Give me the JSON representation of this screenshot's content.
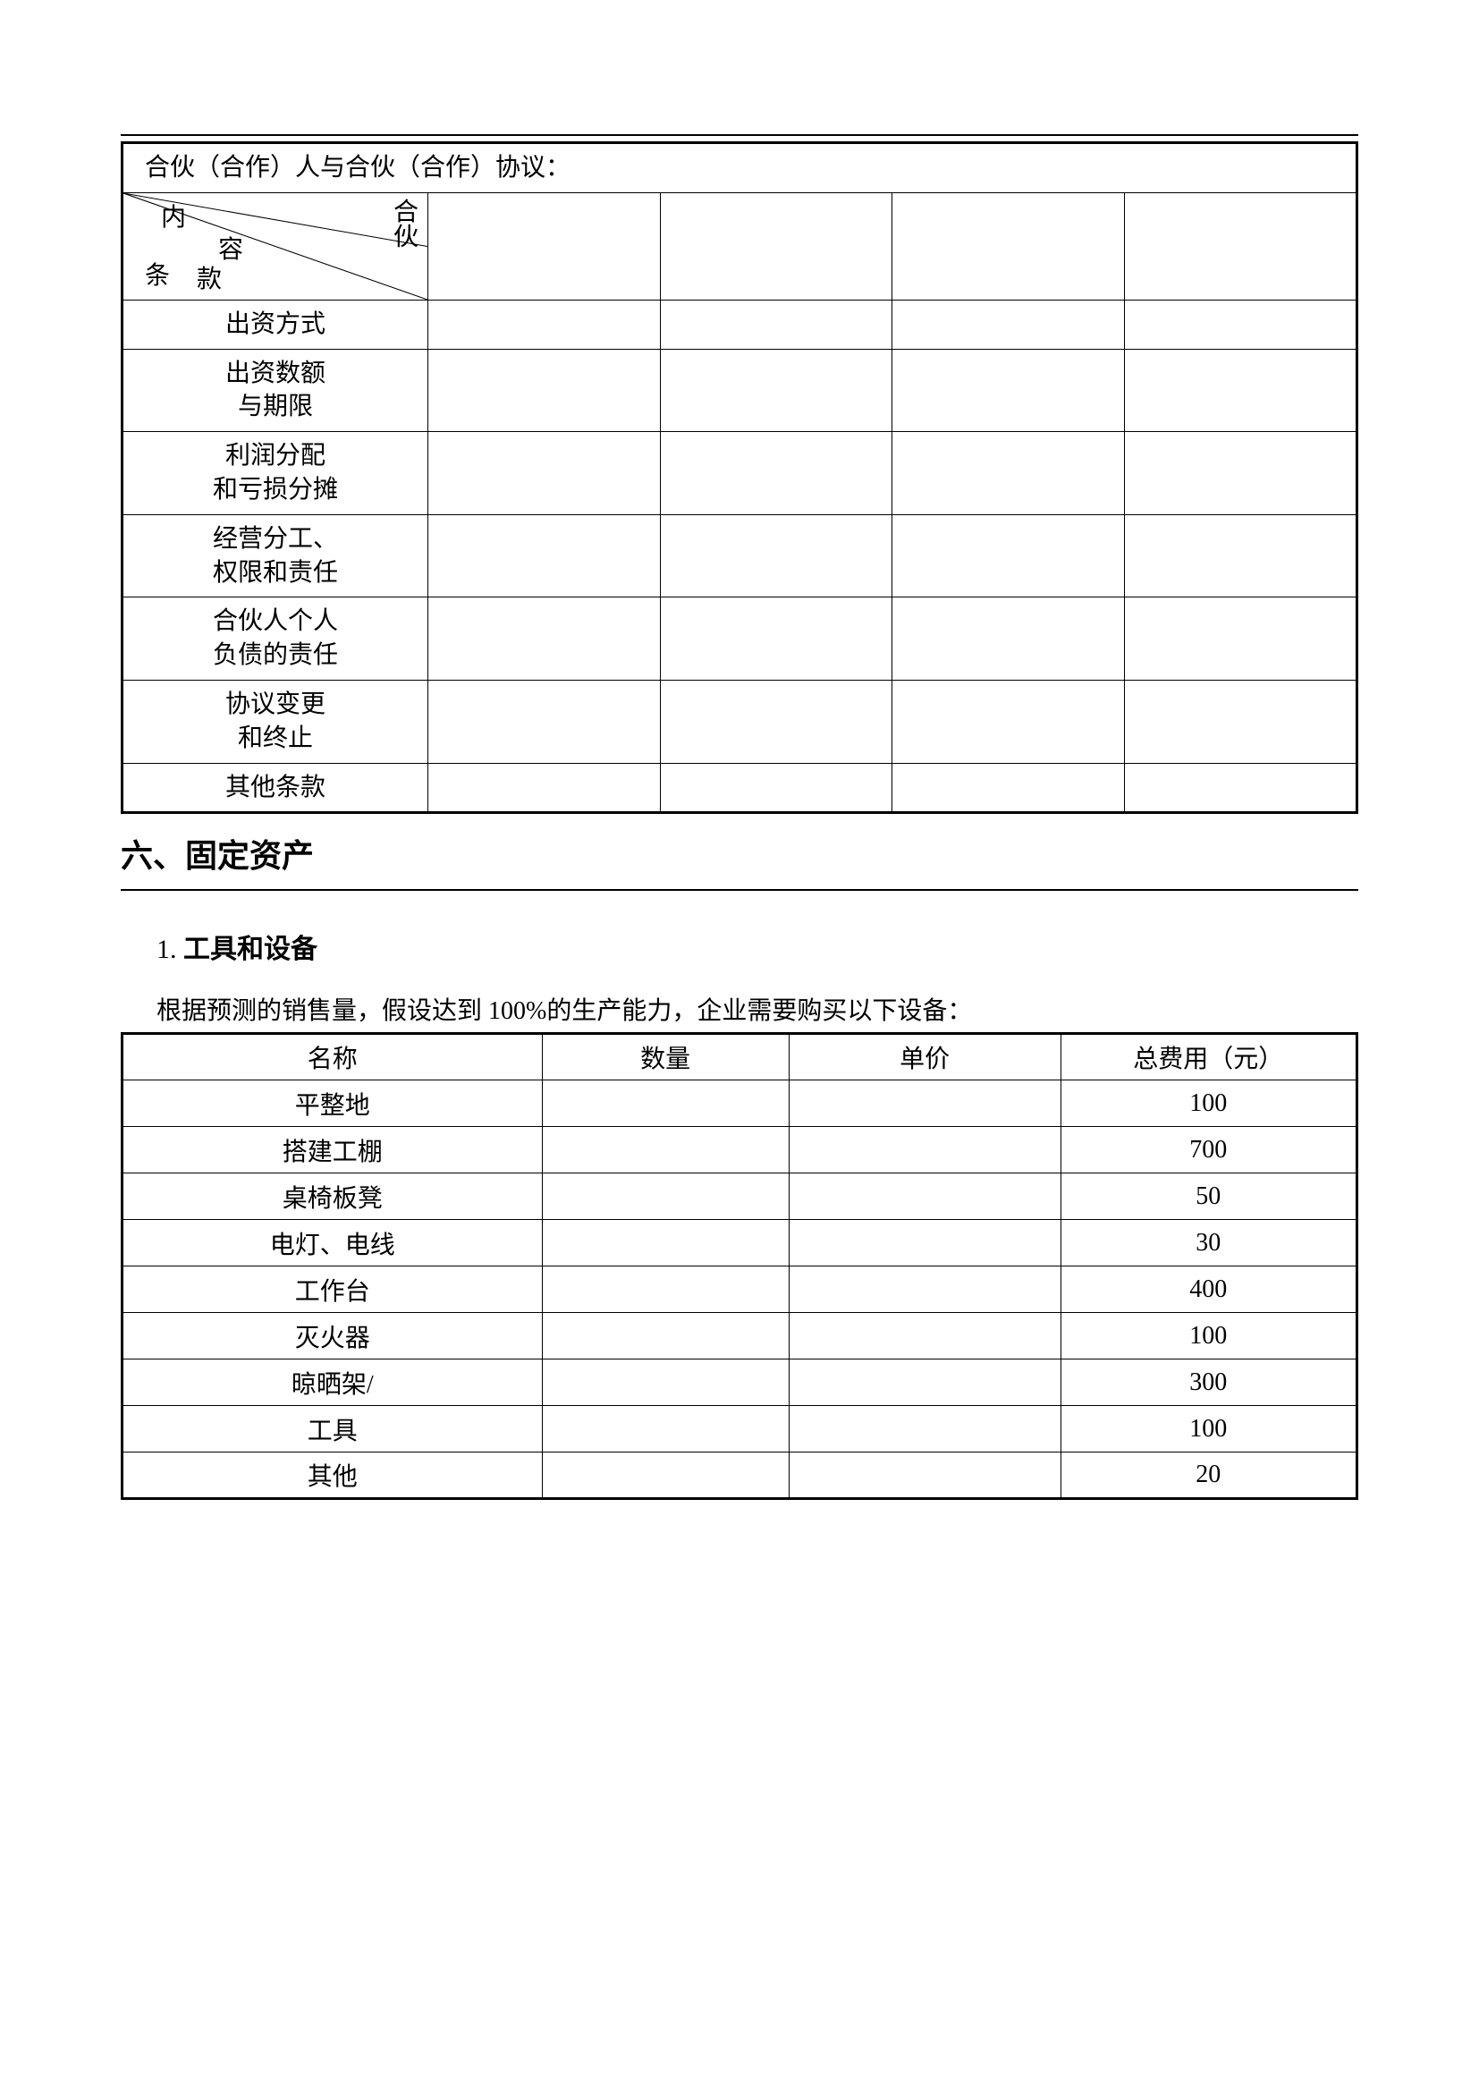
{
  "table1": {
    "title": "合伙（合作）人与合伙（合作）协议：",
    "diagonal": {
      "nei": "内",
      "rong": "容",
      "he": "合",
      "huo": "伙",
      "tiao": "条",
      "kuan": "款"
    },
    "rows": [
      {
        "label": "出资方式",
        "c1": "",
        "c2": "",
        "c3": "",
        "c4": ""
      },
      {
        "label": "出资数额\n与期限",
        "c1": "",
        "c2": "",
        "c3": "",
        "c4": ""
      },
      {
        "label": "利润分配\n和亏损分摊",
        "c1": "",
        "c2": "",
        "c3": "",
        "c4": ""
      },
      {
        "label": "经营分工、\n权限和责任",
        "c1": "",
        "c2": "",
        "c3": "",
        "c4": ""
      },
      {
        "label": "合伙人个人\n负债的责任",
        "c1": "",
        "c2": "",
        "c3": "",
        "c4": ""
      },
      {
        "label": "协议变更\n和终止",
        "c1": "",
        "c2": "",
        "c3": "",
        "c4": ""
      },
      {
        "label": "其他条款",
        "c1": "",
        "c2": "",
        "c3": "",
        "c4": ""
      }
    ]
  },
  "section_heading": "六、固定资产",
  "subheading_num": "1. ",
  "subheading_text": "工具和设备",
  "para_text": "根据预测的销售量，假设达到 100%的生产能力，企业需要购买以下设备：",
  "table2": {
    "headers": [
      "名称",
      "数量",
      "单价",
      "总费用（元）"
    ],
    "rows": [
      {
        "name": "平整地",
        "qty": "",
        "price": "",
        "total": "100"
      },
      {
        "name": "搭建工棚",
        "qty": "",
        "price": "",
        "total": "700"
      },
      {
        "name": "桌椅板凳",
        "qty": "",
        "price": "",
        "total": "50"
      },
      {
        "name": "电灯、电线",
        "qty": "",
        "price": "",
        "total": "30"
      },
      {
        "name": "工作台",
        "qty": "",
        "price": "",
        "total": "400"
      },
      {
        "name": "灭火器",
        "qty": "",
        "price": "",
        "total": "100"
      },
      {
        "name": "晾晒架/",
        "qty": "",
        "price": "",
        "total": "300"
      },
      {
        "name": "工具",
        "qty": "",
        "price": "",
        "total": "100"
      },
      {
        "name": "其他",
        "qty": "",
        "price": "",
        "total": "20"
      }
    ]
  }
}
